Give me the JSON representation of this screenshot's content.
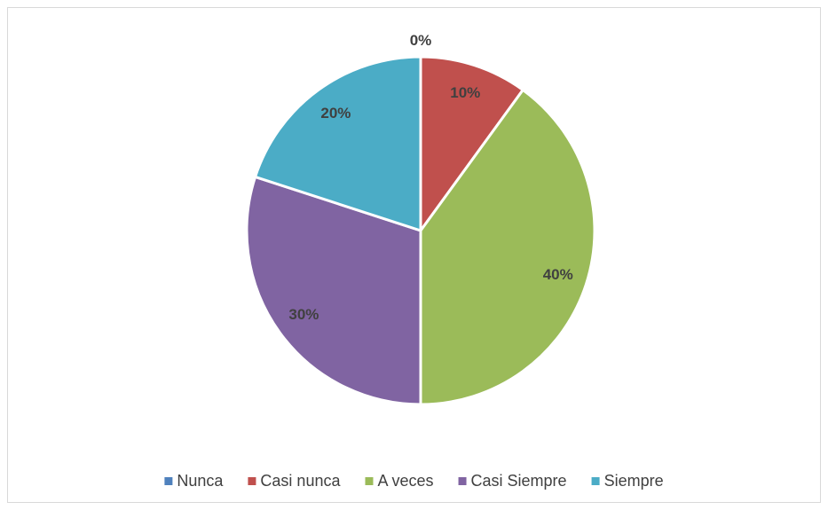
{
  "chart_data": {
    "type": "pie",
    "categories": [
      "Nunca",
      "Casi nunca",
      "A veces",
      "Casi Siempre",
      "Siempre"
    ],
    "values": [
      0,
      10,
      40,
      30,
      20
    ],
    "value_labels": [
      "0%",
      "10%",
      "40%",
      "30%",
      "20%"
    ],
    "colors": [
      "#4f81bd",
      "#c0504d",
      "#9bbb59",
      "#8064a2",
      "#4bacc6"
    ],
    "legend": "bottom"
  }
}
